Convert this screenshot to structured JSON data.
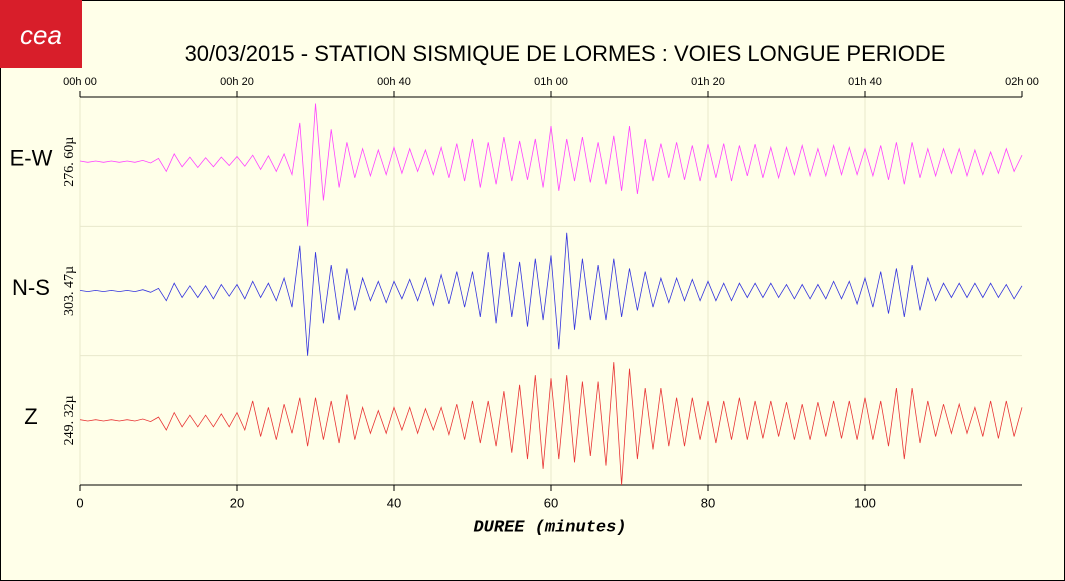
{
  "chart_data": {
    "type": "seismogram",
    "logo": "cea",
    "title": "30/03/2015  -  STATION SISMIQUE DE LORMES : VOIES LONGUE PERIODE",
    "xlabel": "DUREE (minutes)",
    "xlim": [
      0,
      120
    ],
    "xticks": [
      0,
      20,
      40,
      60,
      80,
      100
    ],
    "x2ticks": [
      {
        "value": 0,
        "label": "00h 00"
      },
      {
        "value": 20,
        "label": "00h 20"
      },
      {
        "value": 40,
        "label": "00h 40"
      },
      {
        "value": 60,
        "label": "01h 00"
      },
      {
        "value": 80,
        "label": "01h 20"
      },
      {
        "value": 100,
        "label": "01h 40"
      },
      {
        "value": 120,
        "label": "02h 00"
      }
    ],
    "grid": true,
    "x": [
      0,
      1,
      2,
      3,
      4,
      5,
      6,
      7,
      8,
      9,
      10,
      11,
      12,
      13,
      14,
      15,
      16,
      17,
      18,
      19,
      20,
      21,
      22,
      23,
      24,
      25,
      26,
      27,
      28,
      29,
      30,
      31,
      32,
      33,
      34,
      35,
      36,
      37,
      38,
      39,
      40,
      41,
      42,
      43,
      44,
      45,
      46,
      47,
      48,
      49,
      50,
      51,
      52,
      53,
      54,
      55,
      56,
      57,
      58,
      59,
      60,
      61,
      62,
      63,
      64,
      65,
      66,
      67,
      68,
      69,
      70,
      71,
      72,
      73,
      74,
      75,
      76,
      77,
      78,
      79,
      80,
      81,
      82,
      83,
      84,
      85,
      86,
      87,
      88,
      89,
      90,
      91,
      92,
      93,
      94,
      95,
      96,
      97,
      98,
      99,
      100,
      101,
      102,
      103,
      104,
      105,
      106,
      107,
      108,
      109,
      110,
      111,
      112,
      113,
      114,
      115,
      116,
      117,
      118,
      119,
      120
    ],
    "series": [
      {
        "name": "E-W",
        "scale_label": "276. 60µ",
        "color": "#ff44ff",
        "ylim": [
          -1,
          1
        ],
        "values": [
          0.01,
          -0.01,
          0.01,
          -0.01,
          0.01,
          -0.01,
          0.01,
          -0.01,
          0.02,
          -0.02,
          0.05,
          -0.15,
          0.12,
          -0.08,
          0.07,
          -0.09,
          0.06,
          -0.08,
          0.07,
          -0.06,
          0.08,
          -0.07,
          0.1,
          -0.12,
          0.09,
          -0.15,
          0.12,
          -0.2,
          0.6,
          -1.0,
          0.9,
          -0.6,
          0.5,
          -0.4,
          0.3,
          -0.25,
          0.2,
          -0.22,
          0.18,
          -0.2,
          0.22,
          -0.18,
          0.2,
          -0.15,
          0.18,
          -0.2,
          0.22,
          -0.25,
          0.28,
          -0.3,
          0.35,
          -0.4,
          0.3,
          -0.35,
          0.38,
          -0.3,
          0.32,
          -0.28,
          0.35,
          -0.4,
          0.55,
          -0.45,
          0.35,
          -0.3,
          0.38,
          -0.32,
          0.3,
          -0.35,
          0.4,
          -0.45,
          0.55,
          -0.5,
          0.35,
          -0.3,
          0.28,
          -0.25,
          0.3,
          -0.28,
          0.25,
          -0.3,
          0.27,
          -0.25,
          0.28,
          -0.3,
          0.25,
          -0.22,
          0.27,
          -0.25,
          0.22,
          -0.25,
          0.22,
          -0.2,
          0.25,
          -0.22,
          0.2,
          -0.22,
          0.25,
          -0.2,
          0.22,
          -0.2,
          0.2,
          -0.22,
          0.25,
          -0.28,
          0.3,
          -0.35,
          0.3,
          -0.25,
          0.2,
          -0.22,
          0.2,
          -0.18,
          0.2,
          -0.22,
          0.18,
          -0.2,
          0.15,
          -0.18,
          0.2,
          -0.15,
          0.1
        ]
      },
      {
        "name": "N-S",
        "scale_label": "303. 47µ",
        "color": "#3535dd",
        "ylim": [
          -1,
          1
        ],
        "values": [
          0.01,
          -0.01,
          0.01,
          -0.01,
          0.01,
          -0.01,
          0.01,
          -0.01,
          0.02,
          -0.02,
          0.04,
          -0.15,
          0.12,
          -0.1,
          0.08,
          -0.1,
          0.08,
          -0.12,
          0.1,
          -0.08,
          0.1,
          -0.12,
          0.15,
          -0.1,
          0.12,
          -0.15,
          0.2,
          -0.25,
          0.7,
          -1.0,
          0.6,
          -0.5,
          0.4,
          -0.45,
          0.35,
          -0.3,
          0.2,
          -0.15,
          0.15,
          -0.18,
          0.15,
          -0.12,
          0.18,
          -0.15,
          0.2,
          -0.22,
          0.25,
          -0.2,
          0.3,
          -0.25,
          0.3,
          -0.4,
          0.6,
          -0.5,
          0.6,
          -0.4,
          0.45,
          -0.55,
          0.5,
          -0.45,
          0.55,
          -0.9,
          0.9,
          -0.6,
          0.5,
          -0.45,
          0.4,
          -0.45,
          0.5,
          -0.4,
          0.35,
          -0.3,
          0.3,
          -0.25,
          0.2,
          -0.18,
          0.2,
          -0.15,
          0.18,
          -0.15,
          0.15,
          -0.15,
          0.12,
          -0.15,
          0.12,
          -0.1,
          0.12,
          -0.1,
          0.12,
          -0.1,
          0.1,
          -0.12,
          0.1,
          -0.12,
          0.1,
          -0.12,
          0.15,
          -0.12,
          0.15,
          -0.2,
          0.2,
          -0.25,
          0.3,
          -0.35,
          0.35,
          -0.4,
          0.4,
          -0.3,
          0.2,
          -0.15,
          0.12,
          -0.1,
          0.12,
          -0.1,
          0.12,
          -0.1,
          0.12,
          -0.1,
          0.1,
          -0.12,
          0.08
        ]
      },
      {
        "name": "Z",
        "scale_label": "249. 32µ",
        "color": "#e83535",
        "ylim": [
          -1,
          1
        ],
        "values": [
          0.01,
          -0.01,
          0.01,
          -0.01,
          0.01,
          -0.01,
          0.01,
          -0.01,
          0.02,
          -0.02,
          0.05,
          -0.15,
          0.12,
          -0.1,
          0.08,
          -0.1,
          0.08,
          -0.1,
          0.1,
          -0.1,
          0.12,
          -0.15,
          0.3,
          -0.25,
          0.2,
          -0.3,
          0.25,
          -0.2,
          0.35,
          -0.4,
          0.35,
          -0.3,
          0.3,
          -0.35,
          0.4,
          -0.3,
          0.2,
          -0.2,
          0.15,
          -0.2,
          0.2,
          -0.15,
          0.2,
          -0.2,
          0.18,
          -0.15,
          0.2,
          -0.22,
          0.25,
          -0.3,
          0.3,
          -0.35,
          0.3,
          -0.4,
          0.45,
          -0.5,
          0.55,
          -0.6,
          0.7,
          -0.75,
          0.65,
          -0.6,
          0.7,
          -0.65,
          0.6,
          -0.55,
          0.6,
          -0.7,
          0.9,
          -1.0,
          0.8,
          -0.6,
          0.5,
          -0.45,
          0.5,
          -0.4,
          0.35,
          -0.4,
          0.35,
          -0.3,
          0.3,
          -0.35,
          0.3,
          -0.3,
          0.35,
          -0.3,
          0.3,
          -0.28,
          0.3,
          -0.25,
          0.28,
          -0.3,
          0.25,
          -0.3,
          0.28,
          -0.25,
          0.3,
          -0.28,
          0.3,
          -0.3,
          0.35,
          -0.3,
          0.3,
          -0.4,
          0.5,
          -0.6,
          0.5,
          -0.35,
          0.3,
          -0.25,
          0.25,
          -0.2,
          0.25,
          -0.2,
          0.2,
          -0.25,
          0.3,
          -0.28,
          0.3,
          -0.25,
          0.2
        ]
      }
    ]
  }
}
